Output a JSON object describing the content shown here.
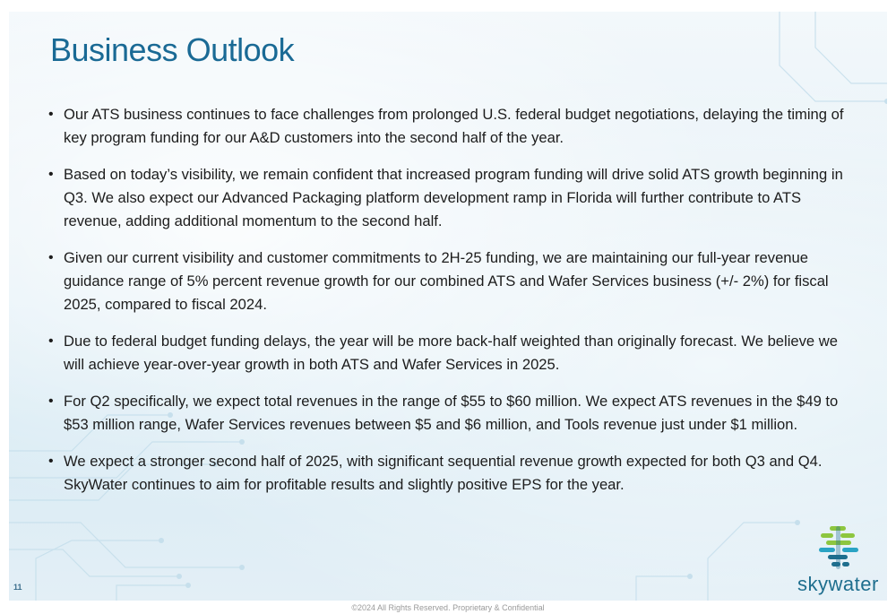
{
  "slide": {
    "title": "Business Outlook",
    "page_number": "11",
    "bullets": [
      "Our ATS business continues to face challenges from prolonged U.S. federal budget negotiations, delaying the timing of key program funding for our A&D customers into the second half of the year.",
      "Based on today’s visibility, we remain confident that increased program funding will drive solid ATS growth beginning in Q3. We also expect our Advanced Packaging platform development ramp in Florida will further contribute to ATS revenue, adding additional momentum to the second half.",
      "Given our current visibility and customer commitments to 2H-25 funding, we are maintaining our full-year revenue guidance range of 5% percent revenue growth for our combined ATS and Wafer Services business (+/- 2%) for fiscal 2025, compared to fiscal 2024.",
      "Due to federal budget funding delays, the year will be more back-half weighted than originally forecast. We believe we will achieve year-over-year growth in both ATS and Wafer Services in 2025.",
      "For Q2 specifically, we expect total revenues in the range of $55 to $60 million. We expect ATS revenues in the $49 to $53 million range, Wafer Services revenues between $5 and $6 million, and Tools revenue just under $1 million.",
      "We expect a stronger second half of 2025, with significant sequential revenue growth expected for both Q3 and Q4. SkyWater continues to aim for profitable results and slightly positive EPS for the year."
    ],
    "logo": {
      "text": "skywater",
      "icon": "skywater-logo-icon",
      "colors": [
        "#8dc63f",
        "#1e6e8e",
        "#2aa3c4"
      ]
    },
    "footer": "©2024 All Rights Reserved. Proprietary & Confidential"
  }
}
